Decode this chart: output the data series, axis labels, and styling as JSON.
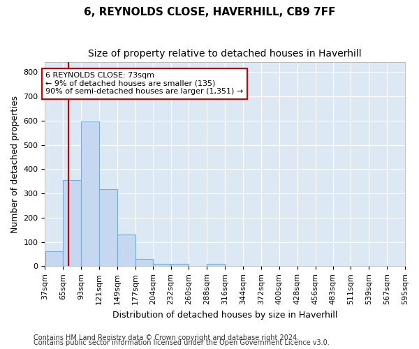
{
  "title": "6, REYNOLDS CLOSE, HAVERHILL, CB9 7FF",
  "subtitle": "Size of property relative to detached houses in Haverhill",
  "xlabel": "Distribution of detached houses by size in Haverhill",
  "ylabel": "Number of detached properties",
  "footnote1": "Contains HM Land Registry data © Crown copyright and database right 2024.",
  "footnote2": "Contains public sector information licensed under the Open Government Licence v3.0.",
  "bar_edges": [
    37,
    65,
    93,
    121,
    149,
    177,
    204,
    232,
    260,
    288,
    316,
    344,
    372,
    400,
    428,
    456,
    483,
    511,
    539,
    567,
    595
  ],
  "bar_heights": [
    60,
    355,
    595,
    318,
    130,
    30,
    10,
    10,
    0,
    10,
    0,
    0,
    0,
    0,
    0,
    0,
    0,
    0,
    0,
    0
  ],
  "bar_color": "#c5d8f0",
  "bar_edgecolor": "#7aadd4",
  "ylim": [
    0,
    840
  ],
  "yticks": [
    0,
    100,
    200,
    300,
    400,
    500,
    600,
    700,
    800
  ],
  "property_size": 73,
  "vline_color": "#cc0000",
  "annotation_line1": "6 REYNOLDS CLOSE: 73sqm",
  "annotation_line2": "← 9% of detached houses are smaller (135)",
  "annotation_line3": "90% of semi-detached houses are larger (1,351) →",
  "annotation_box_color": "#cc0000",
  "fig_bg_color": "#ffffff",
  "plot_bg_color": "#dde8f5",
  "grid_color": "#ffffff",
  "title_fontsize": 11,
  "subtitle_fontsize": 10,
  "axis_label_fontsize": 9,
  "tick_label_size": 8,
  "footnote_fontsize": 7
}
